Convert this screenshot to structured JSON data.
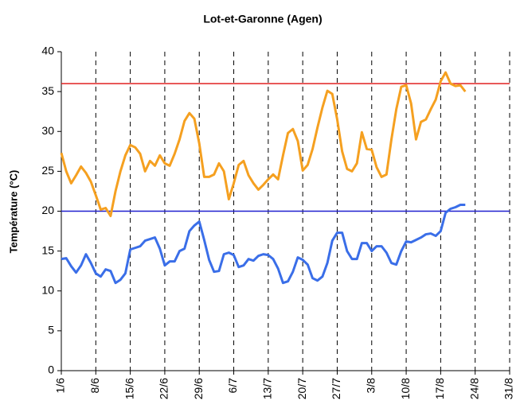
{
  "chart_data": {
    "type": "line",
    "title": "Lot-et-Garonne (Agen)",
    "y_label": "Température (°C)",
    "categories": [
      "1/6",
      null,
      null,
      null,
      null,
      null,
      null,
      "8/6",
      null,
      null,
      null,
      null,
      null,
      null,
      "15/6",
      null,
      null,
      null,
      null,
      null,
      null,
      "22/6",
      null,
      null,
      null,
      null,
      null,
      null,
      "29/6",
      null,
      null,
      null,
      null,
      null,
      null,
      "6/7",
      null,
      null,
      null,
      null,
      null,
      null,
      "13/7",
      null,
      null,
      null,
      null,
      null,
      null,
      "20/7",
      null,
      null,
      null,
      null,
      null,
      null,
      "27/7",
      null,
      null,
      null,
      null,
      null,
      null,
      "3/8",
      null,
      null,
      null,
      null,
      null,
      null,
      "10/8",
      null,
      null,
      null,
      null,
      null,
      null,
      "17/8",
      null,
      null,
      null,
      null,
      null,
      null,
      "24/8",
      null,
      null,
      null,
      null,
      null,
      null,
      "31/8"
    ],
    "series": [
      {
        "color": "#f5a020",
        "values": [
          27.3,
          25,
          23.5,
          24.5,
          25.6,
          24.8,
          23.7,
          22,
          20.2,
          20.4,
          19.4,
          22.5,
          25,
          27,
          28.3,
          28,
          27.2,
          25,
          26.3,
          25.7,
          27,
          26,
          25.7,
          27.2,
          29,
          31.3,
          32.3,
          31.6,
          28.5,
          24.3,
          24.3,
          24.6,
          26,
          25,
          21.5,
          23.5,
          25.8,
          26.3,
          24.5,
          23.5,
          22.7,
          23.3,
          24,
          24.6,
          24,
          27,
          29.8,
          30.3,
          28.8,
          25.1,
          25.8,
          27.8,
          30.5,
          33,
          35.1,
          34.7,
          31.5,
          27.5,
          25.3,
          25,
          26,
          29.9,
          27.8,
          27.7,
          25.5,
          24.3,
          24.6,
          29,
          32.8,
          35.6,
          35.8,
          33.5,
          29,
          31.2,
          31.5,
          32.8,
          34,
          36.3,
          37.4,
          36,
          35.7,
          35.8,
          35,
          null,
          null,
          null,
          null,
          null,
          null,
          null,
          null,
          null
        ]
      },
      {
        "color": "#3a6ee8",
        "values": [
          14,
          14.1,
          13.1,
          12.3,
          13.2,
          14.6,
          13.5,
          12.2,
          11.8,
          12.7,
          12.5,
          11,
          11.4,
          12.2,
          15.2,
          15.4,
          15.6,
          16.3,
          16.5,
          16.7,
          15.3,
          13.2,
          13.7,
          13.7,
          15,
          15.3,
          17.5,
          18.2,
          18.7,
          16.4,
          13.9,
          12.4,
          12.5,
          14.6,
          14.8,
          14.5,
          13,
          13.2,
          14,
          13.8,
          14.4,
          14.6,
          14.5,
          14,
          12.8,
          11,
          11.2,
          12.4,
          14.2,
          13.9,
          13.3,
          11.6,
          11.3,
          11.8,
          13.5,
          16.3,
          17.3,
          17.3,
          15,
          14,
          14,
          16,
          16,
          15,
          15.6,
          15.6,
          14.8,
          13.5,
          13.3,
          15,
          16.2,
          16.1,
          16.4,
          16.7,
          17.1,
          17.2,
          16.9,
          17.5,
          19.8,
          20.3,
          20.5,
          20.8,
          20.8,
          null,
          null,
          null,
          null,
          null,
          null,
          null,
          null,
          null
        ]
      }
    ],
    "reference_lines": [
      {
        "value": 36,
        "color": "#e02020"
      },
      {
        "value": 20,
        "color": "#2020d0"
      }
    ],
    "ylim": [
      0,
      40
    ],
    "yticks": [
      0,
      5,
      10,
      15,
      20,
      25,
      30,
      35,
      40
    ]
  }
}
